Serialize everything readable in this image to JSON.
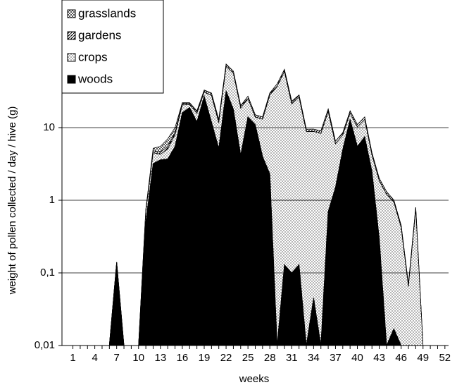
{
  "chart_data": {
    "type": "stacked-area",
    "x_label": "weeks",
    "y_label": "weight of pollen collected / day / hive (g)",
    "x": [
      1,
      2,
      3,
      4,
      5,
      6,
      7,
      8,
      9,
      10,
      11,
      12,
      13,
      14,
      15,
      16,
      17,
      18,
      19,
      20,
      21,
      22,
      23,
      24,
      25,
      26,
      27,
      28,
      29,
      30,
      31,
      32,
      33,
      34,
      35,
      36,
      37,
      38,
      39,
      40,
      41,
      42,
      43,
      44,
      45,
      46,
      47,
      48,
      49,
      50,
      51,
      52
    ],
    "xlim": [
      -0.5,
      52.5
    ],
    "xticks": [
      1,
      4,
      7,
      10,
      13,
      16,
      19,
      22,
      25,
      28,
      31,
      34,
      37,
      40,
      43,
      46,
      49,
      52
    ],
    "ylim": [
      0.01,
      100
    ],
    "log_y": true,
    "yticks": [
      {
        "value": 0.01,
        "label": "0,01"
      },
      {
        "value": 0.1,
        "label": "0,1"
      },
      {
        "value": 1,
        "label": "1"
      },
      {
        "value": 10,
        "label": "10"
      }
    ],
    "grid": true,
    "legend": "top-left",
    "series": [
      {
        "name": "woods",
        "color": "#000000",
        "fill": "solid",
        "values": [
          0,
          0,
          0,
          0,
          0,
          0,
          0.14,
          0,
          0,
          0,
          0.5,
          3.2,
          3.6,
          3.7,
          5.5,
          16,
          19,
          12,
          27,
          12,
          5.2,
          32,
          18,
          4.2,
          14,
          11,
          4,
          2.3,
          0,
          0.13,
          0.1,
          0.13,
          0,
          0.045,
          0,
          0.7,
          1.5,
          5,
          13,
          5.5,
          7.5,
          2.5,
          0.3,
          0.01,
          0.017,
          0,
          0,
          0,
          0,
          0,
          0,
          0
        ]
      },
      {
        "name": "crops",
        "color": "#000000",
        "fill": "dots",
        "values": [
          0,
          0,
          0,
          0,
          0,
          0,
          0,
          0,
          0,
          0,
          0.2,
          1.3,
          0.7,
          1.4,
          2.5,
          4.5,
          1.7,
          3.7,
          3.7,
          15.7,
          6.5,
          37.5,
          38,
          14.3,
          11,
          3,
          9,
          25.7,
          37,
          59,
          21,
          26,
          8.8,
          8.8,
          8.3,
          15.8,
          4.5,
          2.9,
          2.8,
          4.7,
          5.5,
          1.7,
          1.55,
          1.2,
          0.93,
          0.42,
          0.065,
          0.75,
          0,
          0,
          0,
          0
        ]
      },
      {
        "name": "gardens",
        "color": "#000000",
        "fill": "hatch",
        "values": [
          0,
          0,
          0,
          0,
          0,
          0,
          0,
          0,
          0,
          0,
          0.05,
          0.3,
          0.3,
          0.4,
          0.5,
          1,
          1,
          1,
          2,
          2,
          1,
          5,
          4,
          1.5,
          2,
          1,
          1,
          2,
          3,
          4,
          2,
          2,
          0.7,
          0.7,
          0.7,
          1.5,
          0.5,
          0.6,
          1.2,
          0.8,
          1,
          0.3,
          0.15,
          0.1,
          0.06,
          0.03,
          0.005,
          0.05,
          0,
          0,
          0,
          0
        ]
      },
      {
        "name": "grasslands",
        "color": "#000000",
        "fill": "checker",
        "values": [
          0,
          0,
          0,
          0,
          0,
          0,
          0,
          0,
          0,
          0,
          0,
          0.4,
          0.9,
          1.5,
          1.5,
          0.5,
          0.3,
          0.3,
          0.3,
          0.3,
          0.3,
          0.5,
          0,
          0,
          0,
          0,
          0,
          0,
          0,
          0,
          0,
          0,
          0,
          0,
          0,
          0,
          0,
          0,
          0,
          0,
          0,
          0,
          0,
          0,
          0,
          0,
          0,
          0,
          0,
          0,
          0,
          0
        ]
      }
    ]
  }
}
